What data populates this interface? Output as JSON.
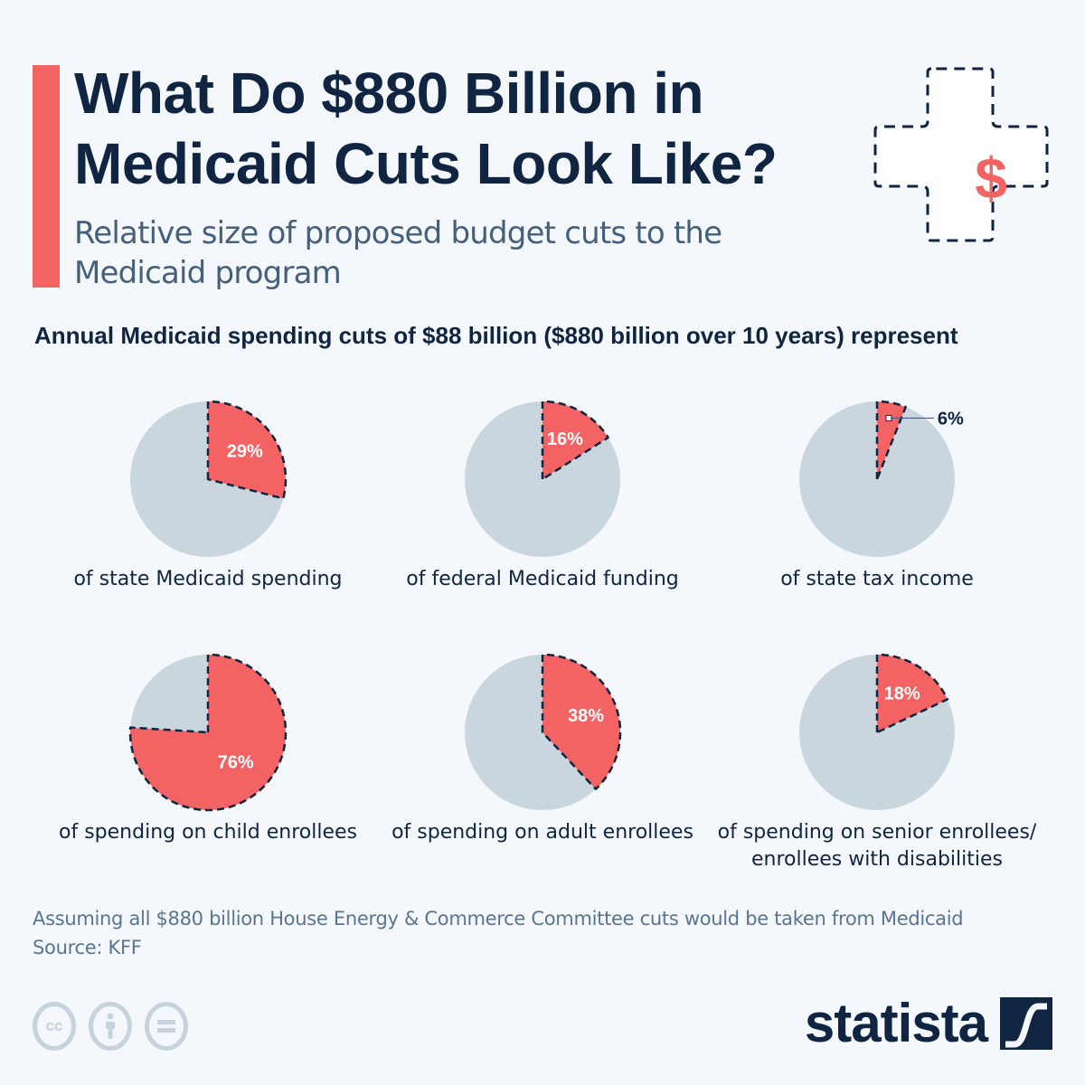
{
  "header": {
    "title": "What Do $880 Billion in Medicaid Cuts Look Like?",
    "subtitle": "Relative size of proposed budget cuts to the Medicaid program",
    "icon": "medical-cross-dollar-icon"
  },
  "colors": {
    "accent": "#f46363",
    "remainder": "#c9d6de",
    "text_dark": "#0f2541",
    "text_muted": "#45607d",
    "background": "#f4f7fb"
  },
  "chart_data": {
    "type": "pie",
    "title": "Annual Medicaid spending cuts of $88 billion ($880 billion over 10 years) represent",
    "series": [
      {
        "name": "of state Medicaid spending",
        "value": 29,
        "label": "29%"
      },
      {
        "name": "of federal Medicaid funding",
        "value": 16,
        "label": "16%"
      },
      {
        "name": "of state tax income",
        "value": 6,
        "label": "6%"
      },
      {
        "name": "of spending on child enrollees",
        "value": 76,
        "label": "76%"
      },
      {
        "name": "of spending on adult enrollees",
        "value": 38,
        "label": "38%"
      },
      {
        "name": "of spending on senior enrollees/ enrollees with disabilities",
        "value": 18,
        "label": "18%"
      }
    ],
    "unit": "%",
    "total": 100
  },
  "footer": {
    "note": "Assuming all $880 billion House Energy & Commerce Committee cuts would be taken from Medicaid",
    "source": "Source: KFF",
    "license_icons": [
      "cc-icon",
      "attribution-icon",
      "no-derivatives-icon"
    ],
    "cc_text": "cc",
    "logo_text": "statista"
  }
}
